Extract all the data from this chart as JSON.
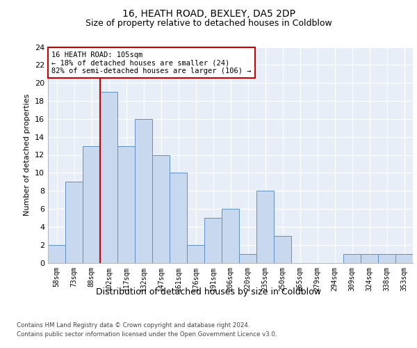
{
  "title1": "16, HEATH ROAD, BEXLEY, DA5 2DP",
  "title2": "Size of property relative to detached houses in Coldblow",
  "xlabel": "Distribution of detached houses by size in Coldblow",
  "ylabel": "Number of detached properties",
  "categories": [
    "58sqm",
    "73sqm",
    "88sqm",
    "102sqm",
    "117sqm",
    "132sqm",
    "147sqm",
    "161sqm",
    "176sqm",
    "191sqm",
    "206sqm",
    "220sqm",
    "235sqm",
    "250sqm",
    "265sqm",
    "279sqm",
    "294sqm",
    "309sqm",
    "324sqm",
    "338sqm",
    "353sqm"
  ],
  "values": [
    2,
    9,
    13,
    19,
    13,
    16,
    12,
    10,
    2,
    5,
    6,
    1,
    8,
    3,
    0,
    0,
    0,
    1,
    1,
    1,
    1
  ],
  "bar_color": "#c8d9ef",
  "bar_edge_color": "#6090c0",
  "reference_line_index": 3,
  "reference_line_color": "#cc0000",
  "annotation_line1": "16 HEATH ROAD: 105sqm",
  "annotation_line2": "← 18% of detached houses are smaller (24)",
  "annotation_line3": "82% of semi-detached houses are larger (106) →",
  "annotation_box_color": "#cc0000",
  "ylim": [
    0,
    24
  ],
  "yticks": [
    0,
    2,
    4,
    6,
    8,
    10,
    12,
    14,
    16,
    18,
    20,
    22,
    24
  ],
  "footer1": "Contains HM Land Registry data © Crown copyright and database right 2024.",
  "footer2": "Contains public sector information licensed under the Open Government Licence v3.0.",
  "plot_background_color": "#e8eef8"
}
